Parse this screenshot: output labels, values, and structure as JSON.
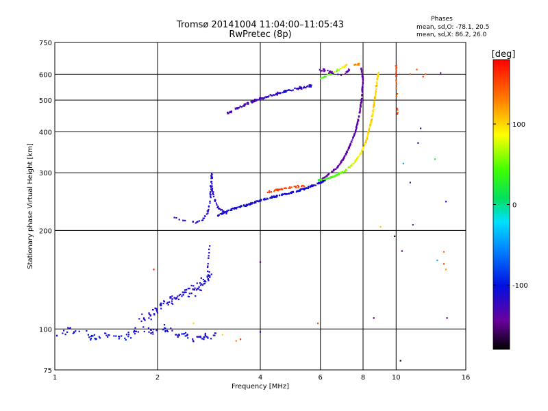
{
  "chart_data": {
    "type": "scatter",
    "title": "Tromsø 20141004 11:04:00–11:05:43",
    "subtitle": "RwPretec (8p)",
    "xlabel": "Frequency [MHz]",
    "ylabel": "Stationary phase Virtual Height [km]",
    "x_scale": "log",
    "y_scale": "log",
    "xlim": [
      1,
      16
    ],
    "ylim": [
      75,
      750
    ],
    "grid": true,
    "x_ticks": [
      1,
      2,
      4,
      6,
      8,
      10,
      16
    ],
    "x_tick_labels": [
      "1",
      "2",
      "4",
      "6",
      "8",
      "10",
      "16"
    ],
    "y_ticks": [
      75,
      100,
      200,
      300,
      400,
      500,
      600,
      750
    ],
    "y_tick_labels": [
      "75",
      "100",
      "200",
      "300",
      "400",
      "500",
      "600",
      "750"
    ],
    "phases_info": {
      "heading": "Phases",
      "line_o": "mean, sd,O: -78.1, 20.5",
      "line_x": "mean, sd,X:  86.2, 26.0"
    },
    "colorbar": {
      "label": "[deg]",
      "range": [
        -180,
        180
      ],
      "ticks": [
        100,
        0,
        -100
      ],
      "tick_labels": [
        "100",
        "0",
        "-100"
      ]
    },
    "series": [
      {
        "traces": [
          [
            1.02,
            97,
            -110
          ],
          [
            1.1,
            100,
            -110
          ],
          [
            1.3,
            94,
            -100
          ],
          [
            1.45,
            96,
            -110
          ],
          [
            1.6,
            93,
            -100
          ],
          [
            1.7,
            98,
            -110
          ],
          [
            1.85,
            100,
            -110
          ],
          [
            2.0,
            99,
            -120
          ],
          [
            2.1,
            100,
            -100
          ],
          [
            2.2,
            98,
            -120
          ],
          [
            2.4,
            96,
            -100
          ],
          [
            2.6,
            92,
            -110
          ],
          [
            2.8,
            95,
            -110
          ],
          [
            3.0,
            95,
            -110
          ]
        ],
        "noise": 0.04,
        "phase_spread": 15,
        "count": 120
      },
      {
        "traces": [
          [
            1.8,
            108,
            -115
          ],
          [
            1.95,
            112,
            -115
          ],
          [
            2.05,
            118,
            -110
          ],
          [
            2.2,
            122,
            -115
          ],
          [
            2.4,
            128,
            -110
          ],
          [
            2.6,
            133,
            -115
          ],
          [
            2.75,
            140,
            -110
          ],
          [
            2.85,
            148,
            -110
          ]
        ],
        "noise": 0.05,
        "phase_spread": 12,
        "count": 110
      },
      {
        "traces": [
          [
            2.8,
            150,
            -115
          ],
          [
            2.82,
            165,
            -115
          ],
          [
            2.84,
            180,
            -115
          ]
        ],
        "noise": 0.01,
        "phase_spread": 5,
        "count": 10
      },
      {
        "traces": [
          [
            2.2,
            220,
            -115
          ],
          [
            2.4,
            214,
            -115
          ],
          [
            2.6,
            212,
            -110
          ],
          [
            2.7,
            215,
            -115
          ],
          [
            2.8,
            225,
            -115
          ],
          [
            2.85,
            245,
            -110
          ],
          [
            2.87,
            280,
            -110
          ],
          [
            2.88,
            300,
            -115
          ],
          [
            2.9,
            260,
            -115
          ],
          [
            3.0,
            235,
            -115
          ],
          [
            3.2,
            225,
            -115
          ]
        ],
        "noise": 0.01,
        "phase_spread": 10,
        "count": 90
      },
      {
        "traces": [
          [
            3.0,
            222,
            -110
          ],
          [
            3.3,
            232,
            -110
          ],
          [
            3.7,
            240,
            -110
          ],
          [
            4.0,
            247,
            -110
          ],
          [
            4.5,
            255,
            -108
          ],
          [
            5.0,
            262,
            -110
          ],
          [
            5.5,
            270,
            -108
          ],
          [
            6.0,
            280,
            -110
          ],
          [
            6.2,
            284,
            -112
          ]
        ],
        "noise": 0.008,
        "phase_spread": 8,
        "count": 220
      },
      {
        "traces": [
          [
            4.2,
            262,
            160
          ],
          [
            4.5,
            266,
            155
          ],
          [
            4.8,
            270,
            150
          ],
          [
            5.1,
            272,
            155
          ],
          [
            5.4,
            274,
            150
          ]
        ],
        "noise": 0.01,
        "phase_spread": 15,
        "count": 45
      },
      {
        "traces": [
          [
            6.0,
            285,
            -140
          ],
          [
            6.3,
            295,
            -140
          ],
          [
            6.7,
            310,
            -140
          ],
          [
            7.0,
            330,
            -140
          ],
          [
            7.3,
            360,
            -140
          ],
          [
            7.6,
            400,
            -135
          ],
          [
            7.8,
            450,
            -140
          ],
          [
            7.95,
            520,
            -140
          ],
          [
            8.0,
            580,
            -140
          ],
          [
            7.9,
            625,
            -140
          ]
        ],
        "noise": 0.006,
        "phase_spread": 10,
        "count": 200
      },
      {
        "traces": [
          [
            5.9,
            285,
            30
          ],
          [
            6.3,
            288,
            40
          ],
          [
            6.7,
            295,
            50
          ],
          [
            7.1,
            305,
            60
          ],
          [
            7.5,
            320,
            80
          ],
          [
            7.9,
            345,
            90
          ],
          [
            8.2,
            380,
            100
          ],
          [
            8.5,
            440,
            100
          ],
          [
            8.7,
            520,
            100
          ],
          [
            8.8,
            580,
            100
          ],
          [
            8.9,
            610,
            100
          ]
        ],
        "noise": 0.007,
        "phase_spread": 25,
        "count": 230
      },
      {
        "traces": [
          [
            3.2,
            455,
            -130
          ],
          [
            3.4,
            470,
            -130
          ],
          [
            3.7,
            490,
            -130
          ],
          [
            4.0,
            505,
            -125
          ],
          [
            4.4,
            520,
            -120
          ],
          [
            4.8,
            535,
            -115
          ],
          [
            5.3,
            545,
            -120
          ],
          [
            5.7,
            555,
            -115
          ]
        ],
        "noise": 0.012,
        "phase_spread": 20,
        "count": 140
      },
      {
        "traces": [
          [
            6.0,
            580,
            40
          ],
          [
            6.4,
            600,
            50
          ],
          [
            6.8,
            620,
            60
          ],
          [
            7.2,
            640,
            110
          ]
        ],
        "noise": 0.012,
        "phase_spread": 30,
        "count": 40
      },
      {
        "traces": [
          [
            6.0,
            620,
            -140
          ],
          [
            6.5,
            605,
            -140
          ],
          [
            7.0,
            595,
            -140
          ],
          [
            7.3,
            620,
            -140
          ]
        ],
        "noise": 0.012,
        "phase_spread": 10,
        "count": 30
      },
      {
        "traces": [
          [
            7.5,
            640,
            130
          ],
          [
            7.8,
            645,
            130
          ]
        ],
        "noise": 0.01,
        "phase_spread": 15,
        "count": 8
      },
      {
        "traces": [
          [
            10.0,
            640,
            150
          ],
          [
            10.0,
            600,
            160
          ],
          [
            10.02,
            560,
            140
          ],
          [
            10.05,
            500,
            150
          ],
          [
            10.1,
            450,
            150
          ]
        ],
        "noise": 0.01,
        "phase_spread": 20,
        "count": 20
      }
    ],
    "scatter_points": [
      [
        13.5,
        605,
        -150
      ],
      [
        12.2,
        600,
        140
      ],
      [
        11.0,
        600,
        150
      ],
      [
        12.0,
        590,
        160
      ],
      [
        11.5,
        620,
        150
      ],
      [
        11.8,
        410,
        -130
      ],
      [
        11.6,
        370,
        -120
      ],
      [
        10.5,
        320,
        -40
      ],
      [
        13.0,
        330,
        20
      ],
      [
        11.0,
        280,
        -140
      ],
      [
        14.0,
        245,
        -100
      ],
      [
        9.0,
        205,
        110
      ],
      [
        11.2,
        208,
        -140
      ],
      [
        9.9,
        192,
        -170
      ],
      [
        10.4,
        173,
        -150
      ],
      [
        13.8,
        172,
        140
      ],
      [
        13.2,
        162,
        -40
      ],
      [
        13.8,
        158,
        150
      ],
      [
        14.0,
        152,
        120
      ],
      [
        8.6,
        108,
        -150
      ],
      [
        14.1,
        108,
        -150
      ],
      [
        10.3,
        80,
        -170
      ],
      [
        4.0,
        160,
        -150
      ],
      [
        4.0,
        98,
        -120
      ],
      [
        3.5,
        93,
        160
      ],
      [
        3.4,
        92,
        130
      ],
      [
        3.1,
        96,
        100
      ],
      [
        5.9,
        104,
        150
      ],
      [
        2.55,
        104,
        100
      ],
      [
        1.95,
        152,
        170
      ]
    ]
  }
}
